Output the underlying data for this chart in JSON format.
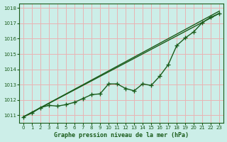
{
  "title": "Graphe pression niveau de la mer (hPa)",
  "bg_color": "#cceee8",
  "grid_color": "#e8b4b4",
  "line_color": "#1a5c1a",
  "xlim": [
    -0.5,
    23.5
  ],
  "ylim": [
    1010.5,
    1018.3
  ],
  "yticks": [
    1011,
    1012,
    1013,
    1014,
    1015,
    1016,
    1017,
    1018
  ],
  "xticks": [
    0,
    1,
    2,
    3,
    4,
    5,
    6,
    7,
    8,
    9,
    10,
    11,
    12,
    13,
    14,
    15,
    16,
    17,
    18,
    19,
    20,
    21,
    22,
    23
  ],
  "straight_line": [
    [
      0,
      1010.9
    ],
    [
      23,
      1017.65
    ]
  ],
  "straight_line2": [
    [
      0,
      1010.9
    ],
    [
      23,
      1017.8
    ]
  ],
  "marker_line_x": [
    0,
    1,
    2,
    3,
    4,
    5,
    6,
    7,
    8,
    9,
    10,
    11,
    12,
    13,
    14,
    15,
    16,
    17,
    18,
    19,
    20,
    21,
    22,
    23
  ],
  "marker_line_y": [
    1010.9,
    1011.15,
    1011.5,
    1011.65,
    1011.6,
    1011.7,
    1011.85,
    1012.1,
    1012.35,
    1012.4,
    1013.05,
    1013.05,
    1012.75,
    1012.6,
    1013.05,
    1012.95,
    1013.55,
    1014.3,
    1015.55,
    1016.05,
    1016.45,
    1017.05,
    1017.4,
    1017.65
  ]
}
